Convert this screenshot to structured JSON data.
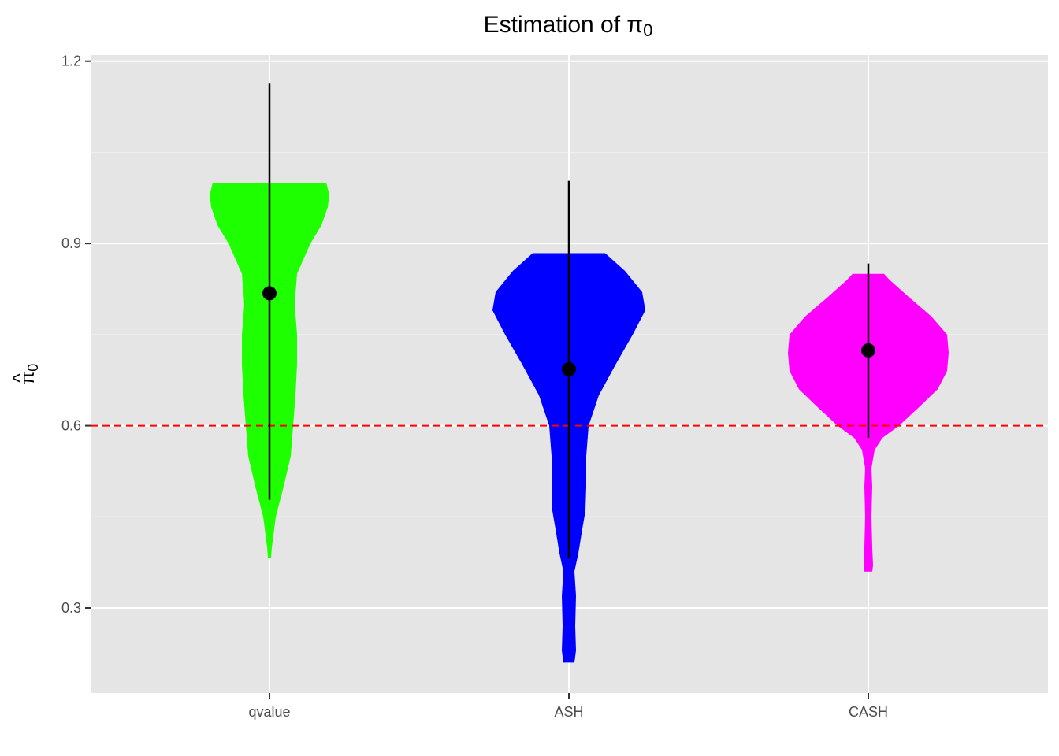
{
  "chart_data": {
    "type": "violin",
    "title": {
      "main": "Estimation of ",
      "symbol": "π",
      "subscript": "0"
    },
    "ylabel": {
      "hat": "^",
      "symbol": "π",
      "subscript": "0"
    },
    "xlabel": "",
    "categories": [
      "qvalue",
      "ASH",
      "CASH"
    ],
    "ylim": [
      0.16,
      1.21
    ],
    "yticks": [
      0.3,
      0.6,
      0.9,
      1.2
    ],
    "ytick_labels": [
      "0.3",
      "0.6",
      "0.9",
      "1.2"
    ],
    "reference_line": {
      "y": 0.6,
      "color": "#FF0000",
      "style": "dashed"
    },
    "grid": true,
    "background": "#E5E5E5",
    "series": [
      {
        "category": "qvalue",
        "fill": "#1EFF00",
        "mean": 0.818,
        "interval": [
          0.478,
          1.163
        ],
        "density": [
          [
            0.383,
            0.02
          ],
          [
            0.4,
            0.03
          ],
          [
            0.45,
            0.08
          ],
          [
            0.5,
            0.18
          ],
          [
            0.55,
            0.27
          ],
          [
            0.6,
            0.3
          ],
          [
            0.65,
            0.33
          ],
          [
            0.7,
            0.35
          ],
          [
            0.75,
            0.35
          ],
          [
            0.8,
            0.32
          ],
          [
            0.85,
            0.35
          ],
          [
            0.9,
            0.52
          ],
          [
            0.93,
            0.66
          ],
          [
            0.96,
            0.74
          ],
          [
            0.98,
            0.76
          ],
          [
            1.0,
            0.72
          ]
        ]
      },
      {
        "category": "ASH",
        "fill": "#0000FF",
        "mean": 0.693,
        "interval": [
          0.383,
          1.003
        ],
        "density": [
          [
            0.21,
            0.07
          ],
          [
            0.23,
            0.09
          ],
          [
            0.27,
            0.08
          ],
          [
            0.32,
            0.09
          ],
          [
            0.36,
            0.07
          ],
          [
            0.39,
            0.12
          ],
          [
            0.43,
            0.17
          ],
          [
            0.46,
            0.21
          ],
          [
            0.5,
            0.22
          ],
          [
            0.55,
            0.22
          ],
          [
            0.6,
            0.25
          ],
          [
            0.65,
            0.38
          ],
          [
            0.7,
            0.59
          ],
          [
            0.75,
            0.81
          ],
          [
            0.79,
            0.97
          ],
          [
            0.82,
            0.93
          ],
          [
            0.855,
            0.71
          ],
          [
            0.884,
            0.46
          ]
        ]
      },
      {
        "category": "CASH",
        "fill": "#FF00FF",
        "mean": 0.724,
        "interval": [
          0.58,
          0.867
        ],
        "density": [
          [
            0.36,
            0.05
          ],
          [
            0.37,
            0.06
          ],
          [
            0.4,
            0.05
          ],
          [
            0.45,
            0.04
          ],
          [
            0.5,
            0.05
          ],
          [
            0.53,
            0.04
          ],
          [
            0.56,
            0.08
          ],
          [
            0.58,
            0.18
          ],
          [
            0.6,
            0.39
          ],
          [
            0.63,
            0.64
          ],
          [
            0.66,
            0.88
          ],
          [
            0.69,
            1.0
          ],
          [
            0.72,
            1.02
          ],
          [
            0.75,
            1.0
          ],
          [
            0.78,
            0.8
          ],
          [
            0.81,
            0.53
          ],
          [
            0.84,
            0.27
          ],
          [
            0.85,
            0.2
          ]
        ]
      }
    ]
  }
}
